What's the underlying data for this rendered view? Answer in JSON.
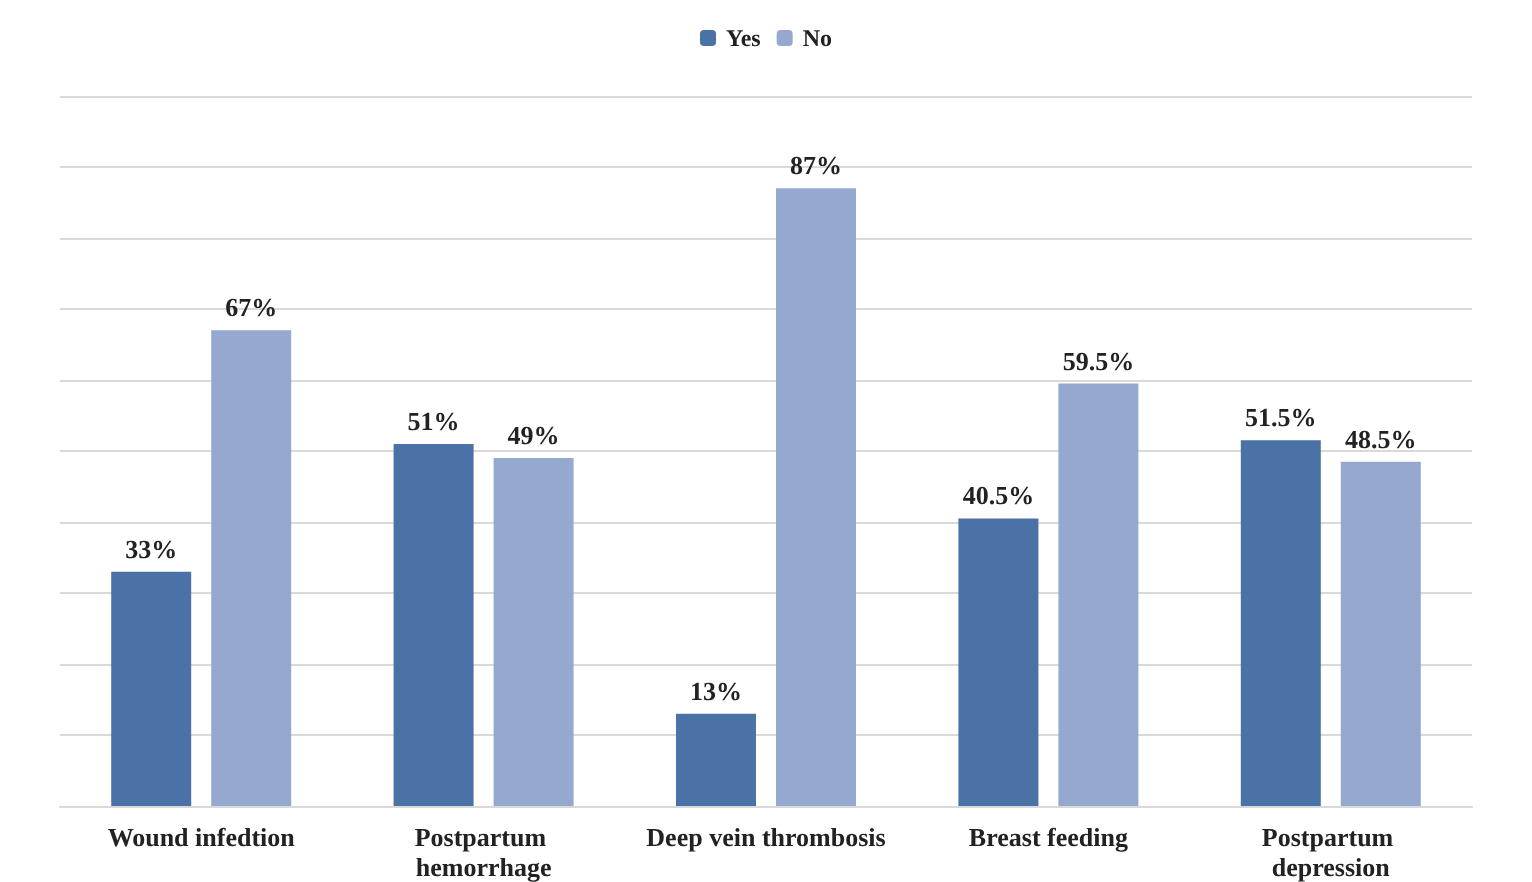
{
  "chart_data": {
    "type": "bar",
    "categories": [
      "Wound infedtion",
      "Postpartum hemorrhage",
      "Deep vein thrombosis",
      "Breast feeding",
      "Postpartum depression"
    ],
    "series": [
      {
        "name": "Yes",
        "color": "#4a72a6",
        "values": [
          33,
          51,
          13,
          40.5,
          51.5
        ],
        "value_labels": [
          "33%",
          "51%",
          "13%",
          "40.5%",
          "51.5%"
        ]
      },
      {
        "name": "No",
        "color": "#95a9d0",
        "values": [
          67,
          49,
          87,
          59.5,
          48.5
        ],
        "value_labels": [
          "67%",
          "49%",
          "87%",
          "59.5%",
          "48.5%"
        ]
      }
    ],
    "ylim": [
      0,
      100
    ],
    "yticks": [
      {
        "value": 0,
        "label": null
      },
      {
        "value": 10,
        "label": null
      },
      {
        "value": 20,
        "label": null
      },
      {
        "value": 30,
        "label": null
      },
      {
        "value": 40,
        "label": null
      },
      {
        "value": 50,
        "label": null
      },
      {
        "value": 60,
        "label": null
      },
      {
        "value": 70,
        "label": null
      },
      {
        "value": 80,
        "label": null
      },
      {
        "value": 90,
        "label": null
      },
      {
        "value": 100,
        "label": null
      }
    ],
    "grid": "y",
    "legend": "top",
    "tick_labels": "x"
  }
}
